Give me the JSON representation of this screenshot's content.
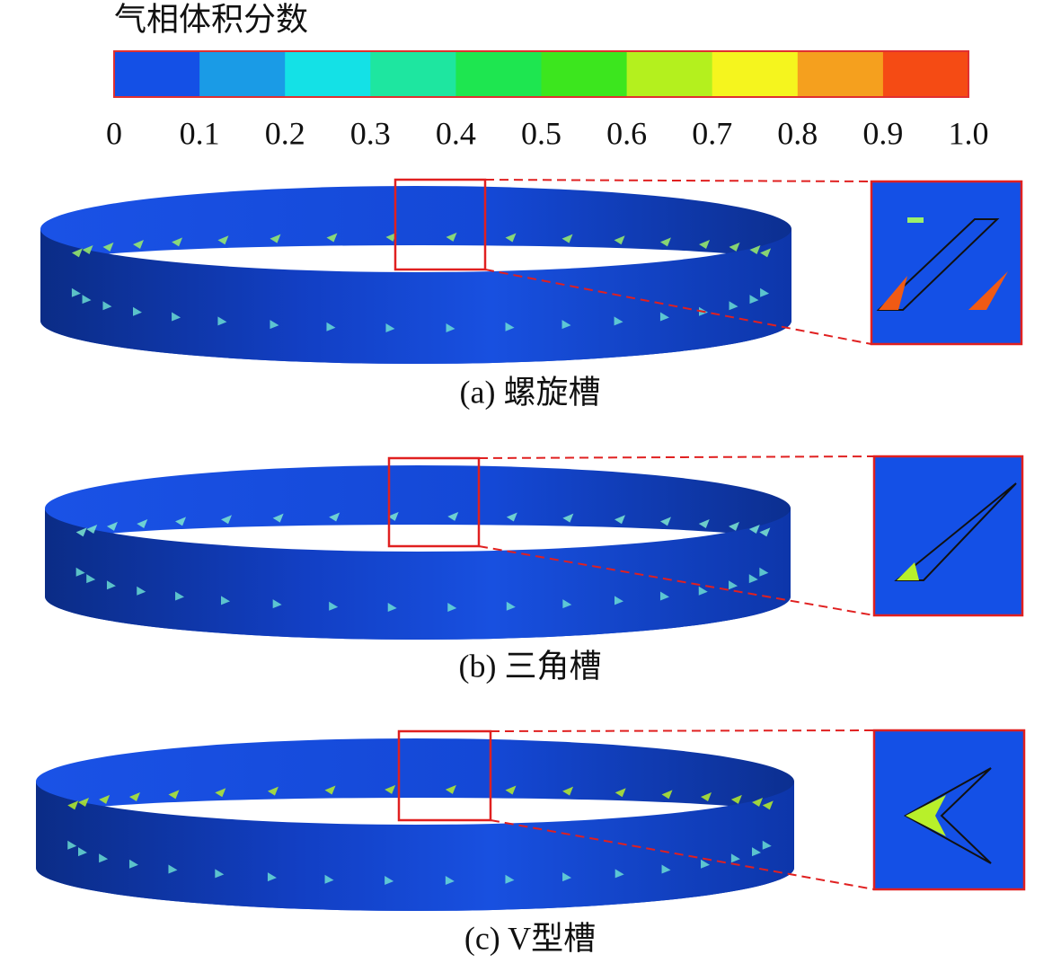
{
  "colorbar": {
    "title": "气相体积分数",
    "colors": [
      "#1450e6",
      "#1a9be6",
      "#14e1e6",
      "#1ee6a0",
      "#1ee650",
      "#3ce61e",
      "#b4f01e",
      "#f5f51e",
      "#f5a01e",
      "#f54b14"
    ],
    "ticks": [
      "0",
      "0.1",
      "0.2",
      "0.3",
      "0.4",
      "0.5",
      "0.6",
      "0.7",
      "0.8",
      "0.9",
      "1.0"
    ]
  },
  "panels": [
    {
      "caption": "(a) 螺旋槽"
    },
    {
      "caption": "(b) 三角槽"
    },
    {
      "caption": "(c) V型槽"
    }
  ]
}
